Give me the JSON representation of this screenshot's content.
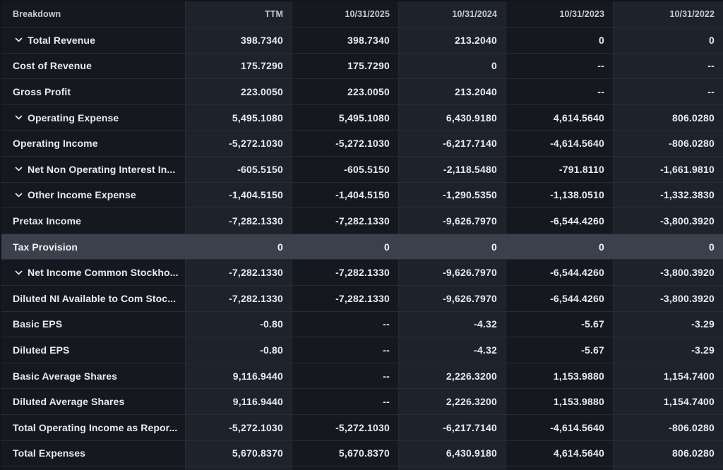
{
  "table": {
    "columns": [
      "Breakdown",
      "TTM",
      "10/31/2025",
      "10/31/2024",
      "10/31/2023",
      "10/31/2022"
    ],
    "rows": [
      {
        "label": "Total Revenue",
        "expandable": true,
        "highlighted": false,
        "values": [
          "398.7340",
          "398.7340",
          "213.2040",
          "0",
          "0"
        ]
      },
      {
        "label": "Cost of Revenue",
        "expandable": false,
        "highlighted": false,
        "values": [
          "175.7290",
          "175.7290",
          "0",
          "--",
          "--"
        ]
      },
      {
        "label": "Gross Profit",
        "expandable": false,
        "highlighted": false,
        "values": [
          "223.0050",
          "223.0050",
          "213.2040",
          "--",
          "--"
        ]
      },
      {
        "label": "Operating Expense",
        "expandable": true,
        "highlighted": false,
        "values": [
          "5,495.1080",
          "5,495.1080",
          "6,430.9180",
          "4,614.5640",
          "806.0280"
        ]
      },
      {
        "label": "Operating Income",
        "expandable": false,
        "highlighted": false,
        "values": [
          "-5,272.1030",
          "-5,272.1030",
          "-6,217.7140",
          "-4,614.5640",
          "-806.0280"
        ]
      },
      {
        "label": "Net Non Operating Interest In...",
        "expandable": true,
        "highlighted": false,
        "values": [
          "-605.5150",
          "-605.5150",
          "-2,118.5480",
          "-791.8110",
          "-1,661.9810"
        ]
      },
      {
        "label": "Other Income Expense",
        "expandable": true,
        "highlighted": false,
        "values": [
          "-1,404.5150",
          "-1,404.5150",
          "-1,290.5350",
          "-1,138.0510",
          "-1,332.3830"
        ]
      },
      {
        "label": "Pretax Income",
        "expandable": false,
        "highlighted": false,
        "values": [
          "-7,282.1330",
          "-7,282.1330",
          "-9,626.7970",
          "-6,544.4260",
          "-3,800.3920"
        ]
      },
      {
        "label": "Tax Provision",
        "expandable": false,
        "highlighted": true,
        "values": [
          "0",
          "0",
          "0",
          "0",
          "0"
        ]
      },
      {
        "label": "Net Income Common Stockho...",
        "expandable": true,
        "highlighted": false,
        "values": [
          "-7,282.1330",
          "-7,282.1330",
          "-9,626.7970",
          "-6,544.4260",
          "-3,800.3920"
        ]
      },
      {
        "label": "Diluted NI Available to Com Stoc...",
        "expandable": false,
        "highlighted": false,
        "values": [
          "-7,282.1330",
          "-7,282.1330",
          "-9,626.7970",
          "-6,544.4260",
          "-3,800.3920"
        ]
      },
      {
        "label": "Basic EPS",
        "expandable": false,
        "highlighted": false,
        "values": [
          "-0.80",
          "--",
          "-4.32",
          "-5.67",
          "-3.29"
        ]
      },
      {
        "label": "Diluted EPS",
        "expandable": false,
        "highlighted": false,
        "values": [
          "-0.80",
          "--",
          "-4.32",
          "-5.67",
          "-3.29"
        ]
      },
      {
        "label": "Basic Average Shares",
        "expandable": false,
        "highlighted": false,
        "values": [
          "9,116.9440",
          "--",
          "2,226.3200",
          "1,153.9880",
          "1,154.7400"
        ]
      },
      {
        "label": "Diluted Average Shares",
        "expandable": false,
        "highlighted": false,
        "values": [
          "9,116.9440",
          "--",
          "2,226.3200",
          "1,153.9880",
          "1,154.7400"
        ]
      },
      {
        "label": "Total Operating Income as Repor...",
        "expandable": false,
        "highlighted": false,
        "values": [
          "-5,272.1030",
          "-5,272.1030",
          "-6,217.7140",
          "-4,614.5640",
          "-806.0280"
        ]
      },
      {
        "label": "Total Expenses",
        "expandable": false,
        "highlighted": false,
        "values": [
          "5,670.8370",
          "5,670.8370",
          "6,430.9180",
          "4,614.5640",
          "806.0280"
        ]
      }
    ],
    "colors": {
      "column_dark": "#15181f",
      "column_light": "#1e222b",
      "row_highlight": "#3a414c",
      "border": "#272c34",
      "header_text": "#c6cad2",
      "body_text": "#e7eaee"
    }
  }
}
